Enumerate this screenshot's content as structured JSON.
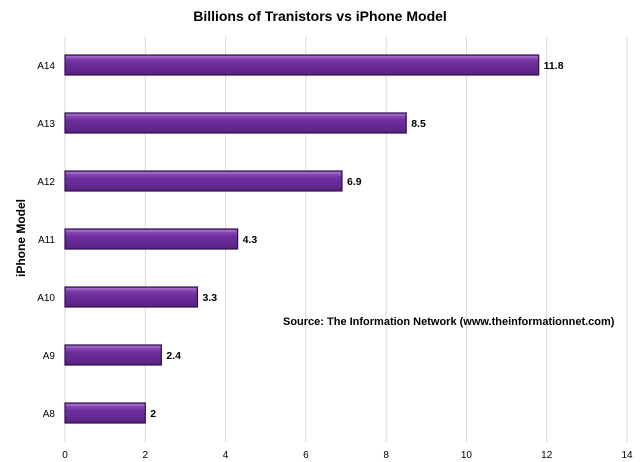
{
  "chart_data": {
    "type": "bar",
    "orientation": "horizontal",
    "title": "Billions of Tranistors vs iPhone Model",
    "xlabel": "",
    "ylabel": "iPhone Model",
    "categories": [
      "A14",
      "A13",
      "A12",
      "A11",
      "A10",
      "A9",
      "A8"
    ],
    "values": [
      11.8,
      8.5,
      6.9,
      4.3,
      3.3,
      2.4,
      2
    ],
    "value_labels": [
      "11.8",
      "8.5",
      "6.9",
      "4.3",
      "3.3",
      "2.4",
      "2"
    ],
    "xlim": [
      0,
      14
    ],
    "x_ticks": [
      "0",
      "2",
      "4",
      "6",
      "8",
      "10",
      "12",
      "14"
    ],
    "grid": "vertical",
    "annotation": "Source: The Information Network (www.theinformationnet.com)",
    "colors": {
      "bar_fill": "#7030a0",
      "bar_light": "#9a5ec4",
      "bar_edge": "#2e0f47",
      "grid": "#d9d9d9"
    }
  }
}
